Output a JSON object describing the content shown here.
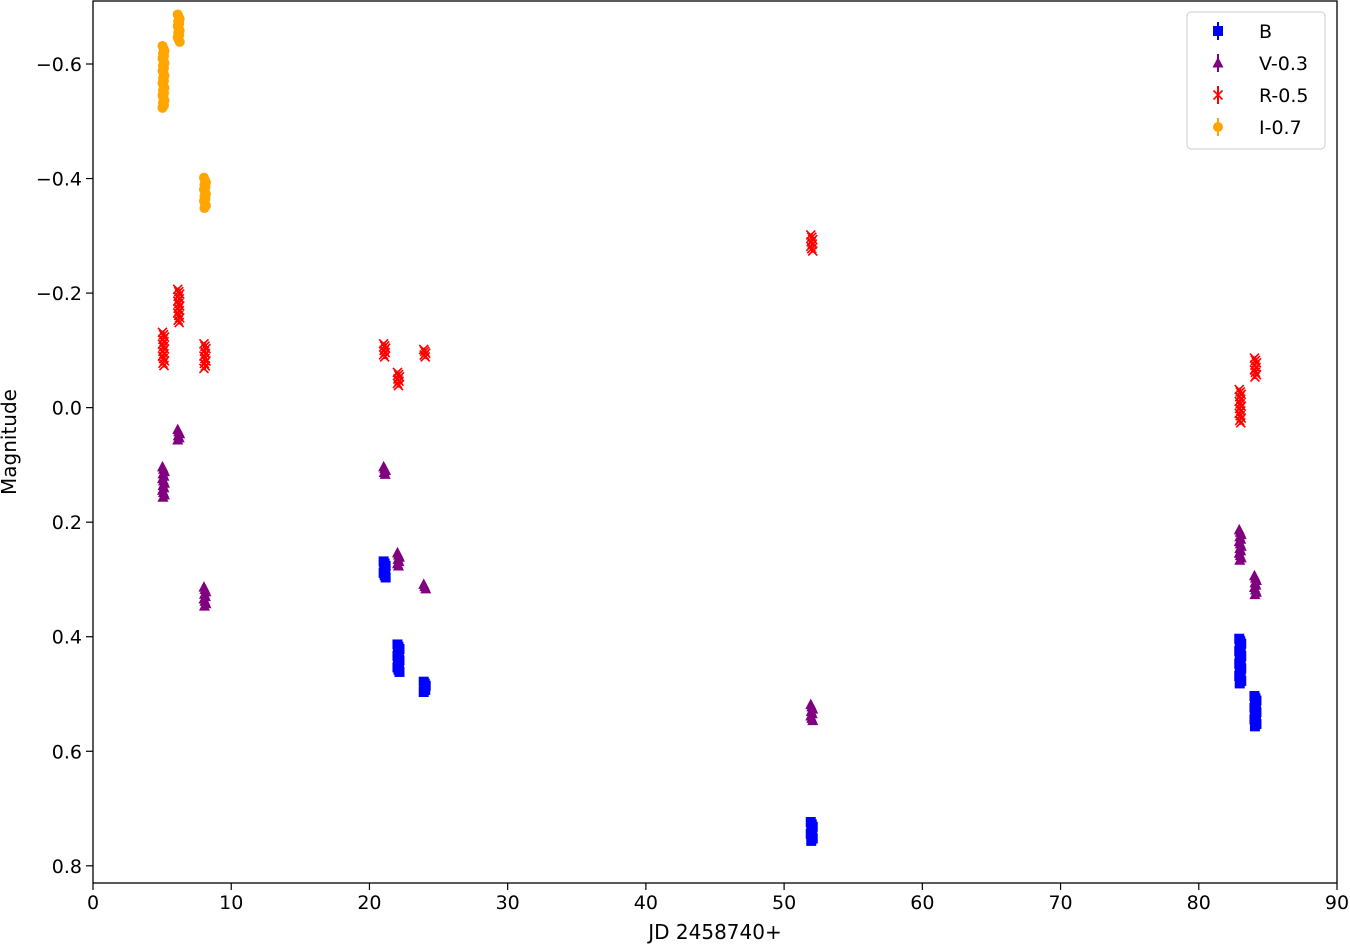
{
  "chart_data": {
    "type": "scatter",
    "title": "",
    "xlabel": "JD 2458740+",
    "ylabel": "Magnitude",
    "xlim": [
      0,
      90
    ],
    "ylim": [
      0.83,
      -0.71
    ],
    "y_inverted": true,
    "grid": false,
    "legend_position": "top-right",
    "x_ticks": [
      0,
      10,
      20,
      30,
      40,
      50,
      60,
      70,
      80,
      90
    ],
    "x_tick_labels": [
      "0",
      "10",
      "20",
      "30",
      "40",
      "50",
      "60",
      "70",
      "80",
      "90"
    ],
    "y_ticks": [
      -0.6,
      -0.4,
      -0.2,
      0.0,
      0.2,
      0.4,
      0.6,
      0.8
    ],
    "y_tick_labels": [
      "−0.6",
      "−0.4",
      "−0.2",
      "0.0",
      "0.2",
      "0.4",
      "0.6",
      "0.8"
    ],
    "series": [
      {
        "name": "B",
        "color": "#0000ff",
        "marker": "square",
        "points": [
          {
            "x": 21.1,
            "y_min": 0.265,
            "y_max": 0.3
          },
          {
            "x": 22.1,
            "y_min": 0.41,
            "y_max": 0.465
          },
          {
            "x": 24.0,
            "y_min": 0.475,
            "y_max": 0.5
          },
          {
            "x": 52.0,
            "y_min": 0.72,
            "y_max": 0.76
          },
          {
            "x": 83.0,
            "y_min": 0.4,
            "y_max": 0.485
          },
          {
            "x": 84.1,
            "y_min": 0.5,
            "y_max": 0.56
          }
        ]
      },
      {
        "name": "V-0.3",
        "color": "#800080",
        "marker": "triangle",
        "points": [
          {
            "x": 5.1,
            "y_min": 0.1,
            "y_max": 0.16
          },
          {
            "x": 6.2,
            "y_min": 0.035,
            "y_max": 0.06
          },
          {
            "x": 8.1,
            "y_min": 0.31,
            "y_max": 0.35
          },
          {
            "x": 21.1,
            "y_min": 0.1,
            "y_max": 0.12
          },
          {
            "x": 22.1,
            "y_min": 0.25,
            "y_max": 0.28
          },
          {
            "x": 24.0,
            "y_min": 0.305,
            "y_max": 0.32
          },
          {
            "x": 52.0,
            "y_min": 0.515,
            "y_max": 0.55
          },
          {
            "x": 83.0,
            "y_min": 0.21,
            "y_max": 0.27
          },
          {
            "x": 84.1,
            "y_min": 0.29,
            "y_max": 0.33
          }
        ]
      },
      {
        "name": "R-0.5",
        "color": "#ff0000",
        "marker": "x",
        "points": [
          {
            "x": 5.1,
            "y_min": -0.135,
            "y_max": -0.07
          },
          {
            "x": 6.2,
            "y_min": -0.21,
            "y_max": -0.145
          },
          {
            "x": 8.1,
            "y_min": -0.115,
            "y_max": -0.065
          },
          {
            "x": 21.1,
            "y_min": -0.115,
            "y_max": -0.085
          },
          {
            "x": 22.1,
            "y_min": -0.065,
            "y_max": -0.035
          },
          {
            "x": 24.0,
            "y_min": -0.105,
            "y_max": -0.085
          },
          {
            "x": 52.0,
            "y_min": -0.305,
            "y_max": -0.27
          },
          {
            "x": 83.0,
            "y_min": -0.035,
            "y_max": 0.03
          },
          {
            "x": 84.1,
            "y_min": -0.09,
            "y_max": -0.05
          }
        ]
      },
      {
        "name": "I-0.7",
        "color": "#ffa500",
        "marker": "circle",
        "points": [
          {
            "x": 5.1,
            "y_min": -0.635,
            "y_max": -0.52
          },
          {
            "x": 6.2,
            "y_min": -0.69,
            "y_max": -0.635
          },
          {
            "x": 8.1,
            "y_min": -0.405,
            "y_max": -0.345
          }
        ]
      }
    ]
  }
}
